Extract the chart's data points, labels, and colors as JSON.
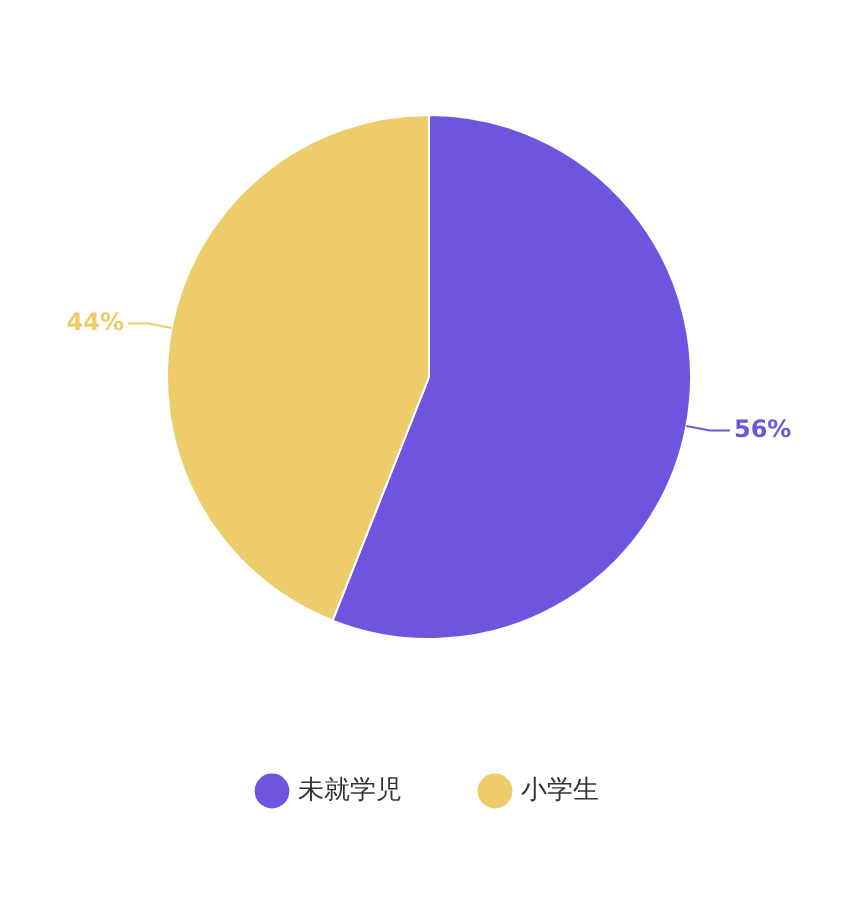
{
  "chart_data": {
    "type": "pie",
    "categories": [
      "未就学児",
      "小学生"
    ],
    "values": [
      56,
      44
    ],
    "colors": [
      "#6f55de",
      "#eecb6b"
    ],
    "value_labels": [
      "56%",
      "44%"
    ],
    "legend": "bottom"
  }
}
